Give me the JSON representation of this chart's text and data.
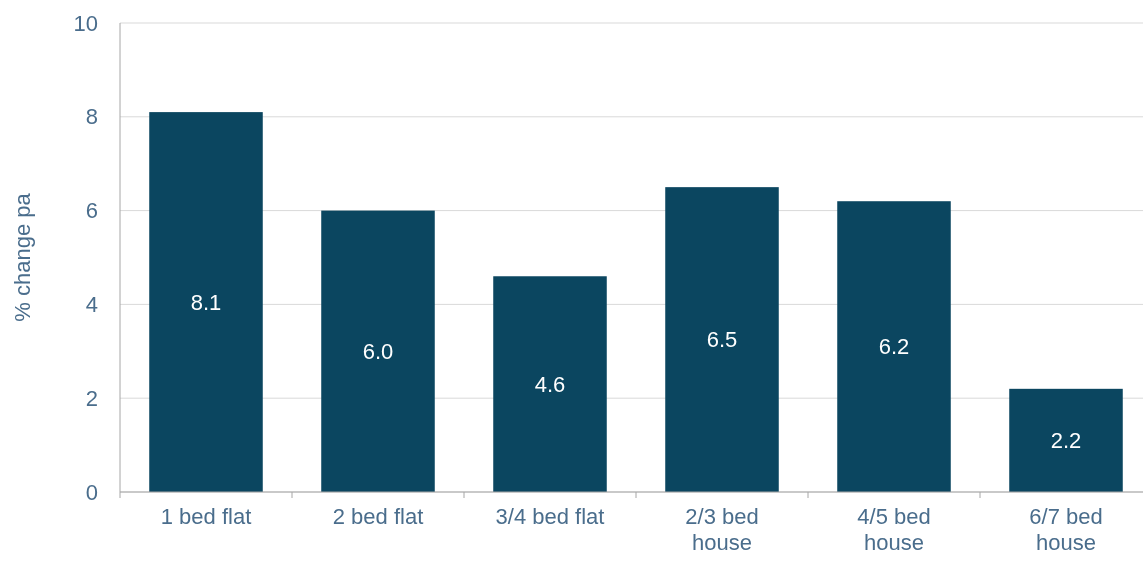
{
  "chart_data": {
    "type": "bar",
    "ylabel": "% change pa",
    "categories": [
      "1 bed flat",
      "2 bed flat",
      "3/4 bed flat",
      "2/3 bed house",
      "4/5 bed house",
      "6/7 bed house"
    ],
    "values": [
      8.1,
      6.0,
      4.6,
      6.5,
      6.2,
      2.2
    ],
    "value_labels": [
      "8.1",
      "6.0",
      "4.6",
      "6.5",
      "6.2",
      "2.2"
    ],
    "color": "#0b4660",
    "ylim": [
      0,
      10
    ],
    "yticks": [
      0,
      2,
      4,
      6,
      8,
      10
    ],
    "grid": "y"
  }
}
